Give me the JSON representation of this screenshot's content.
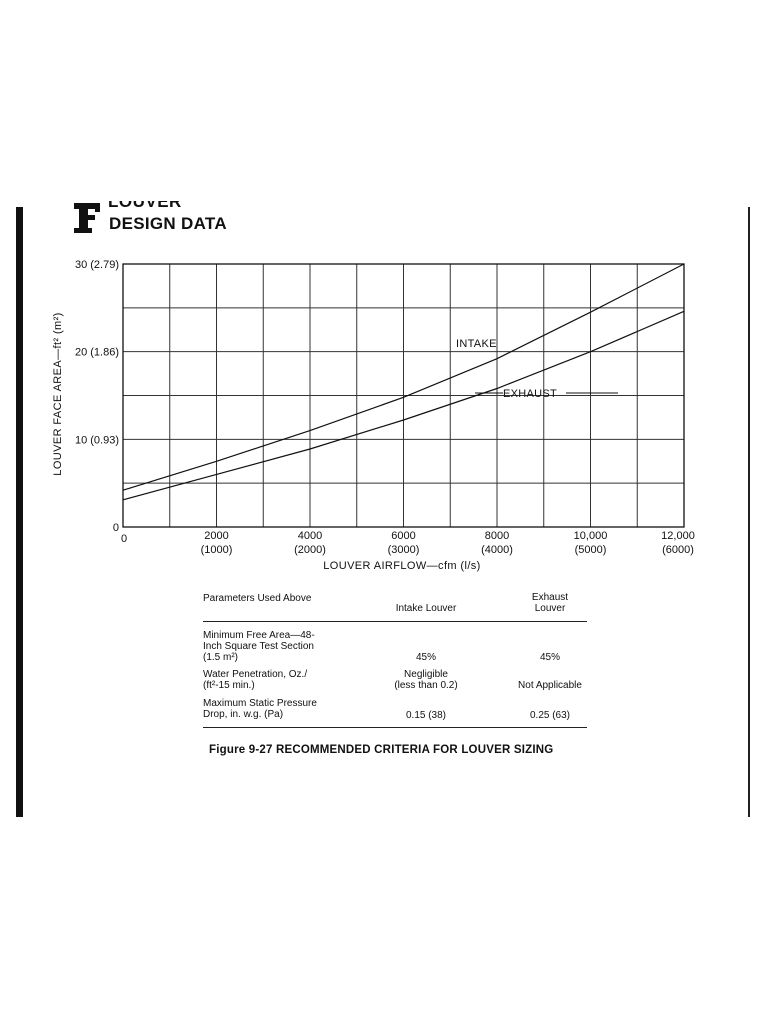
{
  "header": {
    "line1": "LOUVER",
    "line2": "DESIGN DATA"
  },
  "chart_data": {
    "type": "line",
    "x_axis": {
      "label": "LOUVER AIRFLOW—cfm (l/s)",
      "range": [
        0,
        12000
      ],
      "ticks": [
        {
          "value": 0,
          "label": "0",
          "sublabel": ""
        },
        {
          "value": 2000,
          "label": "2000",
          "sublabel": "(1000)"
        },
        {
          "value": 4000,
          "label": "4000",
          "sublabel": "(2000)"
        },
        {
          "value": 6000,
          "label": "6000",
          "sublabel": "(3000)"
        },
        {
          "value": 8000,
          "label": "8000",
          "sublabel": "(4000)"
        },
        {
          "value": 10000,
          "label": "10,000",
          "sublabel": "(5000)"
        },
        {
          "value": 12000,
          "label": "12,000",
          "sublabel": "(6000)"
        }
      ]
    },
    "y_axis": {
      "label": "LOUVER FACE AREA—ft² (m²)",
      "range": [
        0,
        30
      ],
      "ticks": [
        {
          "value": 0,
          "label": "0"
        },
        {
          "value": 10,
          "label": "10 (0.93)"
        },
        {
          "value": 20,
          "label": "20 (1.86)"
        },
        {
          "value": 30,
          "label": "30 (2.79)"
        }
      ]
    },
    "grid": true,
    "series": [
      {
        "name": "INTAKE",
        "x": [
          0,
          2000,
          4000,
          6000,
          8000,
          10000,
          12000
        ],
        "y": [
          4.2,
          7.5,
          11.0,
          14.8,
          19.2,
          24.5,
          30.0
        ]
      },
      {
        "name": "EXHAUST",
        "x": [
          0,
          2000,
          4000,
          6000,
          8000,
          10000,
          12000
        ],
        "y": [
          3.1,
          6.0,
          8.9,
          12.2,
          15.8,
          20.0,
          24.6
        ]
      }
    ]
  },
  "table": {
    "headers": {
      "param": "Parameters Used Above",
      "intake": "Intake Louver",
      "exhaust_line1": "Exhaust",
      "exhaust_line2": "Louver"
    },
    "rows": [
      {
        "param": [
          "Minimum Free Area—48-",
          "Inch Square Test Section",
          "(1.5 m²)"
        ],
        "intake": [
          "45%"
        ],
        "exhaust": [
          "45%"
        ]
      },
      {
        "param": [
          "Water Penetration, Oz./",
          "(ft²-15 min.)"
        ],
        "intake": [
          "Negligible",
          "(less than 0.2)"
        ],
        "exhaust": [
          "Not Applicable"
        ]
      },
      {
        "param": [
          "Maximum Static Pressure",
          "Drop, in. w.g. (Pa)"
        ],
        "intake": [
          "0.15 (38)"
        ],
        "exhaust": [
          "0.25 (63)"
        ]
      }
    ]
  },
  "caption": "Figure 9-27 RECOMMENDED CRITERIA FOR LOUVER SIZING"
}
